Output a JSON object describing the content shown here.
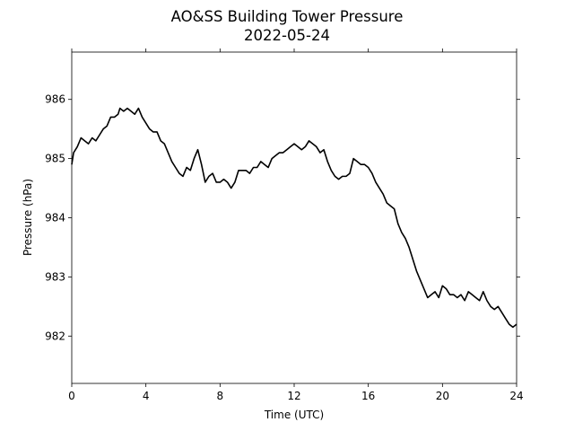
{
  "chart_data": {
    "type": "line",
    "title": "AO&SS Building Tower Pressure",
    "subtitle": "2022-05-24",
    "xlabel": "Time (UTC)",
    "ylabel": "Pressure (hPa)",
    "xlim": [
      0,
      24
    ],
    "ylim": [
      981.2,
      986.8
    ],
    "xticks": [
      0,
      4,
      8,
      12,
      16,
      20,
      24
    ],
    "yticks": [
      982,
      983,
      984,
      985,
      986
    ],
    "grid": false,
    "line_color": "#000000",
    "series": [
      {
        "x": [
          0.0,
          0.1,
          0.3,
          0.5,
          0.7,
          0.9,
          1.1,
          1.3,
          1.5,
          1.7,
          1.9,
          2.1,
          2.3,
          2.5,
          2.6,
          2.8,
          3.0,
          3.2,
          3.4,
          3.6,
          3.8,
          4.0,
          4.2,
          4.4,
          4.6,
          4.8,
          5.0,
          5.2,
          5.4,
          5.6,
          5.8,
          6.0,
          6.2,
          6.4,
          6.6,
          6.8,
          7.0,
          7.2,
          7.4,
          7.6,
          7.8,
          8.0,
          8.2,
          8.4,
          8.6,
          8.8,
          9.0,
          9.2,
          9.4,
          9.6,
          9.8,
          10.0,
          10.2,
          10.4,
          10.6,
          10.8,
          11.0,
          11.2,
          11.4,
          11.6,
          11.8,
          12.0,
          12.2,
          12.4,
          12.6,
          12.8,
          13.0,
          13.2,
          13.4,
          13.6,
          13.8,
          14.0,
          14.2,
          14.4,
          14.6,
          14.8,
          15.0,
          15.2,
          15.4,
          15.6,
          15.8,
          16.0,
          16.2,
          16.4,
          16.6,
          16.8,
          17.0,
          17.2,
          17.4,
          17.6,
          17.8,
          18.0,
          18.2,
          18.4,
          18.6,
          18.8,
          19.0,
          19.2,
          19.4,
          19.6,
          19.8,
          20.0,
          20.2,
          20.4,
          20.6,
          20.8,
          21.0,
          21.2,
          21.4,
          21.6,
          21.8,
          22.0,
          22.2,
          22.4,
          22.6,
          22.8,
          23.0,
          23.2,
          23.4,
          23.6,
          23.8,
          24.0
        ],
        "values": [
          984.9,
          985.1,
          985.2,
          985.35,
          985.3,
          985.25,
          985.35,
          985.3,
          985.4,
          985.5,
          985.55,
          985.7,
          985.7,
          985.75,
          985.85,
          985.8,
          985.85,
          985.8,
          985.75,
          985.85,
          985.7,
          985.6,
          985.5,
          985.45,
          985.45,
          985.3,
          985.25,
          985.1,
          984.95,
          984.85,
          984.75,
          984.7,
          984.85,
          984.8,
          985.0,
          985.15,
          984.9,
          984.6,
          984.7,
          984.75,
          984.6,
          984.6,
          984.65,
          984.6,
          984.5,
          984.6,
          984.8,
          984.8,
          984.8,
          984.75,
          984.85,
          984.85,
          984.95,
          984.9,
          984.85,
          985.0,
          985.05,
          985.1,
          985.1,
          985.15,
          985.2,
          985.25,
          985.2,
          985.15,
          985.2,
          985.3,
          985.25,
          985.2,
          985.1,
          985.15,
          984.95,
          984.8,
          984.7,
          984.65,
          984.7,
          984.7,
          984.75,
          985.0,
          984.95,
          984.9,
          984.9,
          984.85,
          984.75,
          984.6,
          984.5,
          984.4,
          984.25,
          984.2,
          984.15,
          983.9,
          983.75,
          983.65,
          983.5,
          983.3,
          983.1,
          982.95,
          982.8,
          982.65,
          982.7,
          982.75,
          982.65,
          982.85,
          982.8,
          982.7,
          982.7,
          982.65,
          982.7,
          982.6,
          982.75,
          982.7,
          982.65,
          982.6,
          982.75,
          982.6,
          982.5,
          982.45,
          982.5,
          982.4,
          982.3,
          982.2,
          982.15,
          982.2
        ]
      }
    ]
  }
}
